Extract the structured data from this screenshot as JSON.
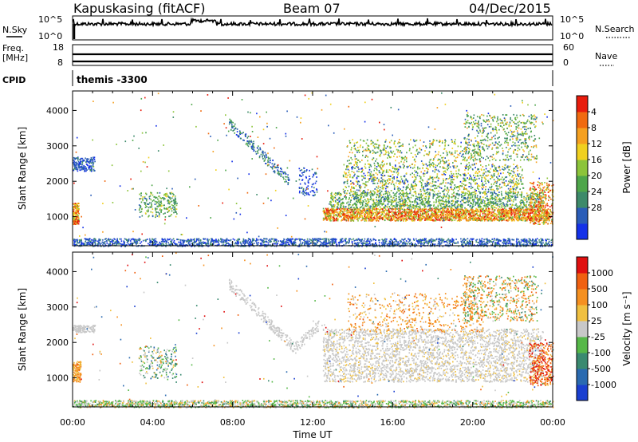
{
  "header": {
    "station": "Kapuskasing (fitACF)",
    "beam": "Beam 07",
    "date": "04/Dec/2015"
  },
  "noise_panel": {
    "left_label": "N.Sky",
    "right_label": "N.Search",
    "left_ticks": [
      "10^5",
      "10^0"
    ],
    "right_ticks": [
      "10^5",
      "10^0"
    ]
  },
  "freq_panel": {
    "left_label_1": "Freq.",
    "left_label_2": "[MHz]",
    "left_ticks": [
      "18",
      "8"
    ],
    "right_label": "Nave",
    "right_ticks": [
      "60",
      "0"
    ]
  },
  "cpid_panel": {
    "label": "CPID",
    "value": "themis -3300"
  },
  "chart_data": [
    {
      "type": "heatmap",
      "quantity": "Power",
      "ylabel": "Slant Range [km]",
      "xlabel": "Time UT",
      "xlim_hours": [
        0,
        24
      ],
      "ylim_km": [
        180,
        4550
      ],
      "x_tick_labels": [
        "00:00",
        "04:00",
        "08:00",
        "12:00",
        "16:00",
        "20:00",
        "00:00"
      ],
      "y_tick_labels": [
        "1000",
        "2000",
        "3000",
        "4000"
      ],
      "colorbar": {
        "label": "Power [dB]",
        "tick_labels": [
          "4",
          "8",
          "12",
          "16",
          "20",
          "24",
          "28"
        ],
        "colors": [
          "#1431e8",
          "#2a5db8",
          "#3d8a6a",
          "#4ea64a",
          "#8cc43a",
          "#f0d020",
          "#f5a020",
          "#f06a10",
          "#e81c0c"
        ]
      }
    },
    {
      "type": "heatmap",
      "quantity": "Velocity",
      "ylabel": "Slant Range [km]",
      "xlabel": "Time UT",
      "xlim_hours": [
        0,
        24
      ],
      "ylim_km": [
        180,
        4550
      ],
      "x_tick_labels": [
        "00:00",
        "04:00",
        "08:00",
        "12:00",
        "16:00",
        "20:00",
        "00:00"
      ],
      "y_tick_labels": [
        "1000",
        "2000",
        "3000",
        "4000"
      ],
      "colorbar": {
        "label": "Velocity [m s⁻¹]",
        "tick_labels": [
          "1000",
          "500",
          "100",
          "25",
          "-25",
          "-100",
          "-500",
          "-1000"
        ],
        "colors": [
          "#1a3fd0",
          "#2a6ab0",
          "#3a8a70",
          "#56b848",
          "#c8c8c8",
          "#f0c040",
          "#f59020",
          "#f06010",
          "#e01010"
        ]
      }
    }
  ],
  "x_axis_label": "Time UT"
}
